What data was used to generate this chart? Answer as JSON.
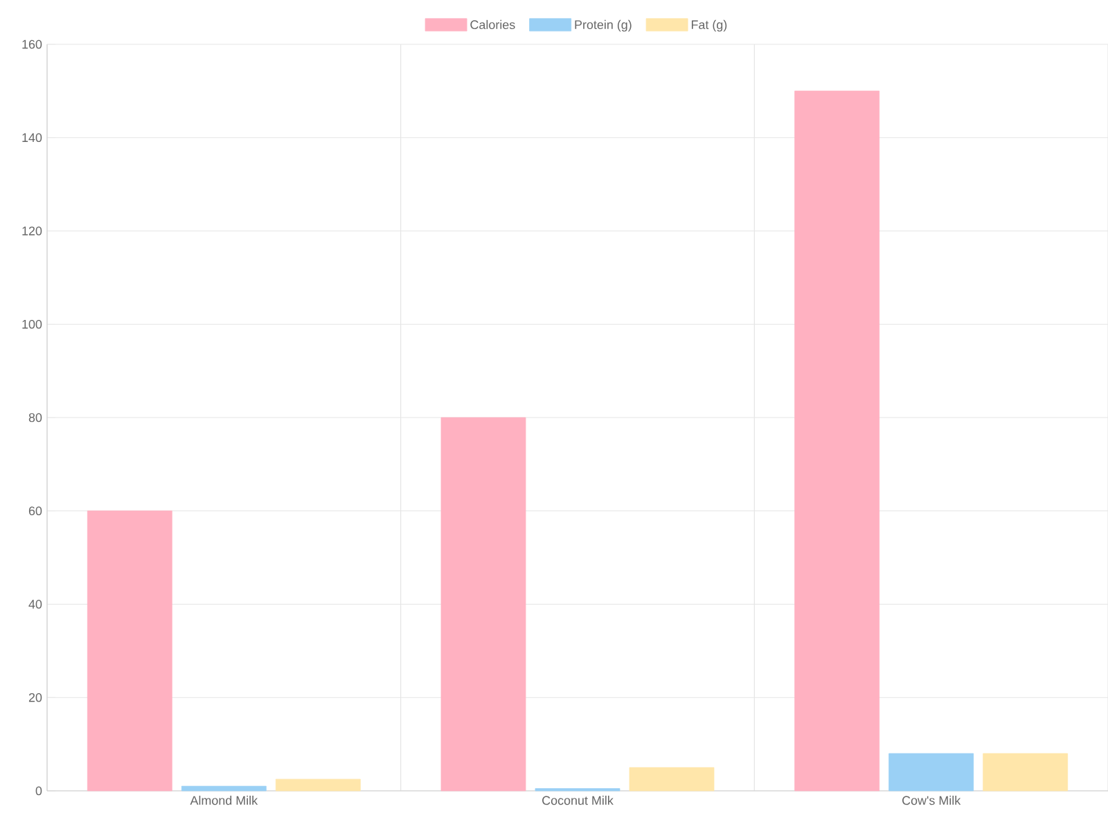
{
  "chart_data": {
    "type": "bar",
    "categories": [
      "Almond Milk",
      "Coconut Milk",
      "Cow's Milk"
    ],
    "series": [
      {
        "name": "Calories",
        "color": "#ffb1c1",
        "values": [
          60,
          80,
          150
        ]
      },
      {
        "name": "Protein (g)",
        "color": "#9ad0f5",
        "values": [
          1,
          0.5,
          8
        ]
      },
      {
        "name": "Fat (g)",
        "color": "#ffe6aa",
        "values": [
          2.5,
          5,
          8
        ]
      }
    ],
    "ylim": [
      0,
      160
    ],
    "yticks": [
      0,
      20,
      40,
      60,
      80,
      100,
      120,
      140,
      160
    ],
    "grid": true,
    "legend": "top"
  }
}
